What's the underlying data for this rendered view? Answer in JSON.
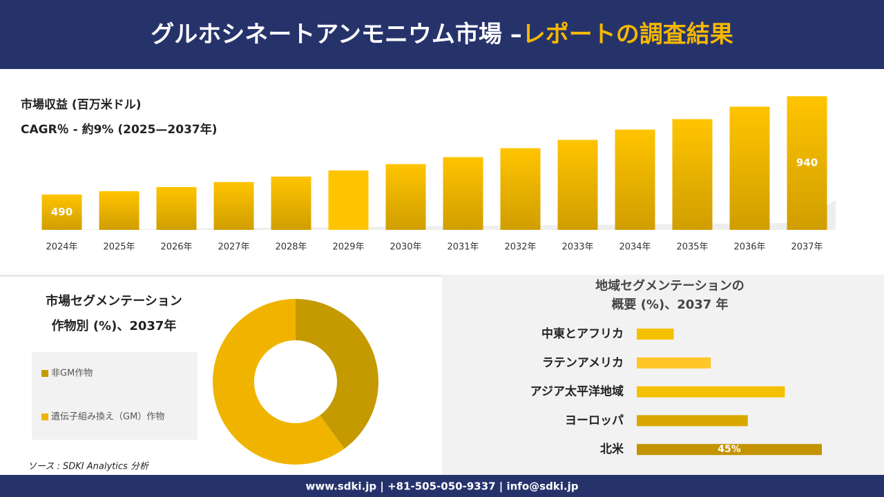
{
  "header": {
    "title": "グルホシネートアンモニウム市場 –",
    "title_highlight": "レポートの調査結果"
  },
  "chart_data": [
    {
      "type": "bar",
      "title": "市場収益 (百万米ドル)",
      "subtitle": "CAGR％ - 約9% (2025—2037年)",
      "categories": [
        "2024年",
        "2025年",
        "2026年",
        "2027年",
        "2028年",
        "2029年",
        "2030年",
        "2031年",
        "2032年",
        "2033年",
        "2034年",
        "2035年",
        "2036年",
        "2037年"
      ],
      "values": [
        490,
        505,
        524,
        547,
        572,
        600,
        629,
        661,
        702,
        740,
        787,
        835,
        892,
        940
      ],
      "color": "#d9a400",
      "ylim": [
        328,
        960
      ]
    },
    {
      "type": "donut",
      "title": "市場セグメンテーション",
      "subtitle": "作物別 (%)、2037年",
      "categories": [
        "非GM作物",
        "遺伝子組み換え（GM）作物"
      ],
      "values": [
        40,
        60
      ],
      "colors": [
        "#c49a00",
        "#f0b400"
      ]
    },
    {
      "type": "hbar",
      "title": "地域セグメンテーションの",
      "subtitle": "概要 (%)、2037 年",
      "categories": [
        "中東とアフリカ",
        "ラテンアメリカ",
        "アジア太平洋地域",
        "ヨーロッパ",
        "北米"
      ],
      "values": [
        9,
        18,
        36,
        27,
        45
      ],
      "value_labels": [
        null,
        null,
        null,
        null,
        "45%"
      ],
      "colors": [
        "#f5c000",
        "#ffc629",
        "#f5c000",
        "#d9a800",
        "#c49300"
      ],
      "xlim": [
        0,
        45
      ]
    }
  ],
  "source": "ソース : SDKI Analytics 分析",
  "footer": "www.sdki.jp | +81-505-050-9337 | info@sdki.jp"
}
